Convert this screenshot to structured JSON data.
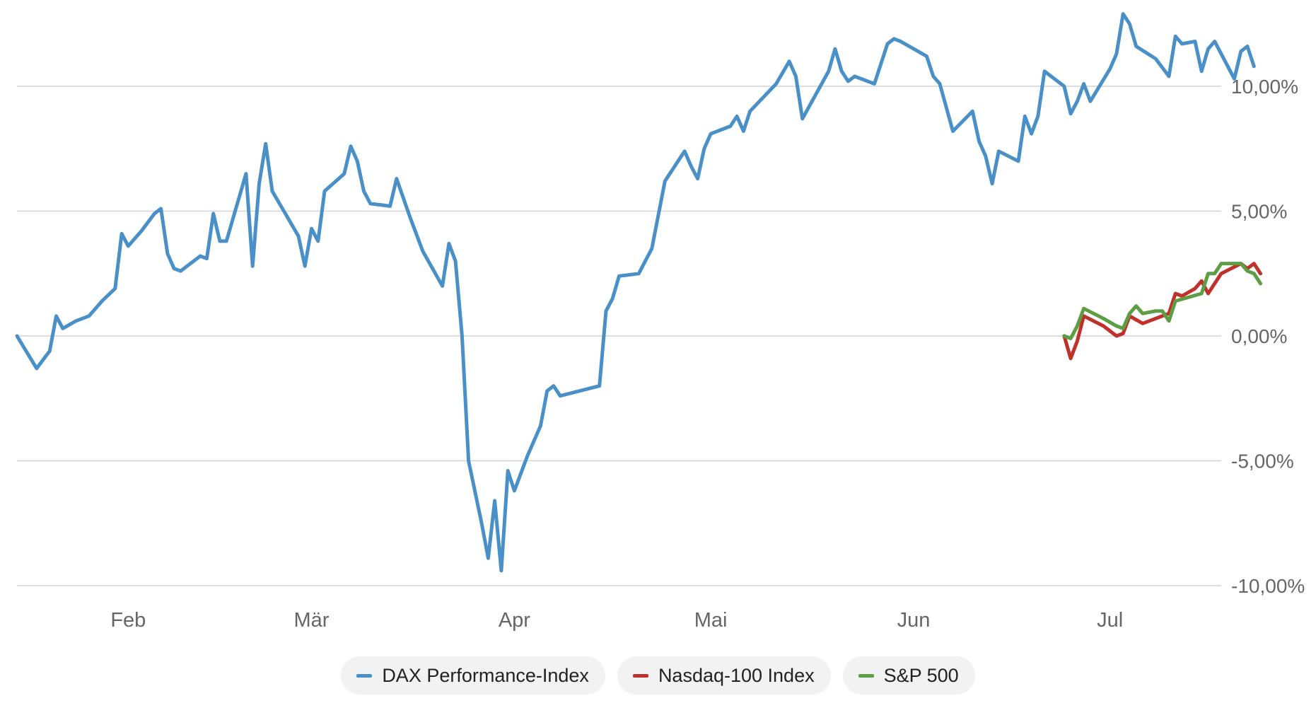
{
  "colors": {
    "grid": "#d4d4d4",
    "tick_text": "#666666",
    "legend_bg": "#f2f2f2"
  },
  "chart_data": {
    "type": "line",
    "title": "",
    "xlabel": "",
    "ylabel": "",
    "ylim": [
      -10,
      10
    ],
    "y_ticks": [
      {
        "value": 10,
        "label": "10,00%"
      },
      {
        "value": 5,
        "label": "5,00%"
      },
      {
        "value": 0,
        "label": "0,00%"
      },
      {
        "value": -5,
        "label": "-5,00%"
      },
      {
        "value": -10,
        "label": "-10,00%"
      }
    ],
    "x_domain": [
      "2025-01-15",
      "2025-07-18"
    ],
    "x_ticks": [
      {
        "date": "2025-02-01",
        "label": "Feb"
      },
      {
        "date": "2025-03-01",
        "label": "Mär"
      },
      {
        "date": "2025-04-01",
        "label": "Apr"
      },
      {
        "date": "2025-05-01",
        "label": "Mai"
      },
      {
        "date": "2025-06-01",
        "label": "Jun"
      },
      {
        "date": "2025-07-01",
        "label": "Jul"
      }
    ],
    "grid": true,
    "legend_position": "bottom",
    "series": [
      {
        "name": "DAX Performance-Index",
        "color": "#4a90c8",
        "points": [
          [
            "2025-01-15",
            0.0
          ],
          [
            "2025-01-18",
            -1.3
          ],
          [
            "2025-01-20",
            -0.6
          ],
          [
            "2025-01-21",
            0.8
          ],
          [
            "2025-01-22",
            0.3
          ],
          [
            "2025-01-24",
            0.6
          ],
          [
            "2025-01-26",
            0.8
          ],
          [
            "2025-01-28",
            1.4
          ],
          [
            "2025-01-30",
            1.9
          ],
          [
            "2025-01-31",
            4.1
          ],
          [
            "2025-02-01",
            3.6
          ],
          [
            "2025-02-03",
            4.2
          ],
          [
            "2025-02-05",
            4.9
          ],
          [
            "2025-02-06",
            5.1
          ],
          [
            "2025-02-07",
            3.3
          ],
          [
            "2025-02-08",
            2.7
          ],
          [
            "2025-02-09",
            2.6
          ],
          [
            "2025-02-12",
            3.2
          ],
          [
            "2025-02-13",
            3.1
          ],
          [
            "2025-02-14",
            4.9
          ],
          [
            "2025-02-15",
            3.8
          ],
          [
            "2025-02-16",
            3.8
          ],
          [
            "2025-02-19",
            6.5
          ],
          [
            "2025-02-20",
            2.8
          ],
          [
            "2025-02-21",
            6.1
          ],
          [
            "2025-02-22",
            7.7
          ],
          [
            "2025-02-23",
            5.8
          ],
          [
            "2025-02-25",
            4.9
          ],
          [
            "2025-02-27",
            4.0
          ],
          [
            "2025-02-28",
            2.8
          ],
          [
            "2025-03-01",
            4.3
          ],
          [
            "2025-03-02",
            3.8
          ],
          [
            "2025-03-03",
            5.8
          ],
          [
            "2025-03-06",
            6.5
          ],
          [
            "2025-03-07",
            7.6
          ],
          [
            "2025-03-08",
            7.0
          ],
          [
            "2025-03-09",
            5.8
          ],
          [
            "2025-03-10",
            5.3
          ],
          [
            "2025-03-13",
            5.2
          ],
          [
            "2025-03-14",
            6.3
          ],
          [
            "2025-03-16",
            4.8
          ],
          [
            "2025-03-18",
            3.4
          ],
          [
            "2025-03-21",
            2.0
          ],
          [
            "2025-03-22",
            3.7
          ],
          [
            "2025-03-23",
            3.0
          ],
          [
            "2025-03-24",
            0.0
          ],
          [
            "2025-03-25",
            -5.0
          ],
          [
            "2025-03-27",
            -7.5
          ],
          [
            "2025-03-28",
            -8.9
          ],
          [
            "2025-03-29",
            -6.6
          ],
          [
            "2025-03-30",
            -9.4
          ],
          [
            "2025-03-31",
            -5.4
          ],
          [
            "2025-04-01",
            -6.2
          ],
          [
            "2025-04-03",
            -4.8
          ],
          [
            "2025-04-05",
            -3.6
          ],
          [
            "2025-04-06",
            -2.2
          ],
          [
            "2025-04-07",
            -2.0
          ],
          [
            "2025-04-08",
            -2.4
          ],
          [
            "2025-04-14",
            -2.0
          ],
          [
            "2025-04-15",
            1.0
          ],
          [
            "2025-04-16",
            1.5
          ],
          [
            "2025-04-17",
            2.4
          ],
          [
            "2025-04-20",
            2.5
          ],
          [
            "2025-04-21",
            3.0
          ],
          [
            "2025-04-22",
            3.5
          ],
          [
            "2025-04-24",
            6.2
          ],
          [
            "2025-04-27",
            7.4
          ],
          [
            "2025-04-28",
            6.8
          ],
          [
            "2025-04-29",
            6.3
          ],
          [
            "2025-04-30",
            7.5
          ],
          [
            "2025-05-01",
            8.1
          ],
          [
            "2025-05-04",
            8.4
          ],
          [
            "2025-05-05",
            8.8
          ],
          [
            "2025-05-06",
            8.2
          ],
          [
            "2025-05-07",
            9.0
          ],
          [
            "2025-05-11",
            10.1
          ],
          [
            "2025-05-13",
            11.0
          ],
          [
            "2025-05-14",
            10.4
          ],
          [
            "2025-05-15",
            8.7
          ],
          [
            "2025-05-19",
            10.6
          ],
          [
            "2025-05-20",
            11.5
          ],
          [
            "2025-05-21",
            10.6
          ],
          [
            "2025-05-22",
            10.2
          ],
          [
            "2025-05-23",
            10.4
          ],
          [
            "2025-05-26",
            10.1
          ],
          [
            "2025-05-28",
            11.7
          ],
          [
            "2025-05-29",
            11.9
          ],
          [
            "2025-05-30",
            11.8
          ],
          [
            "2025-06-03",
            11.2
          ],
          [
            "2025-06-04",
            10.4
          ],
          [
            "2025-06-05",
            10.1
          ],
          [
            "2025-06-07",
            8.2
          ],
          [
            "2025-06-10",
            9.0
          ],
          [
            "2025-06-11",
            7.8
          ],
          [
            "2025-06-12",
            7.2
          ],
          [
            "2025-06-13",
            6.1
          ],
          [
            "2025-06-14",
            7.4
          ],
          [
            "2025-06-17",
            7.0
          ],
          [
            "2025-06-18",
            8.8
          ],
          [
            "2025-06-19",
            8.1
          ],
          [
            "2025-06-20",
            8.8
          ],
          [
            "2025-06-21",
            10.6
          ],
          [
            "2025-06-24",
            10.0
          ],
          [
            "2025-06-25",
            8.9
          ],
          [
            "2025-06-26",
            9.4
          ],
          [
            "2025-06-27",
            10.1
          ],
          [
            "2025-06-28",
            9.4
          ],
          [
            "2025-07-01",
            10.7
          ],
          [
            "2025-07-02",
            11.3
          ],
          [
            "2025-07-03",
            12.9
          ],
          [
            "2025-07-04",
            12.5
          ],
          [
            "2025-07-05",
            11.6
          ],
          [
            "2025-07-08",
            11.1
          ],
          [
            "2025-07-10",
            10.4
          ],
          [
            "2025-07-11",
            12.0
          ],
          [
            "2025-07-12",
            11.7
          ],
          [
            "2025-07-14",
            11.8
          ],
          [
            "2025-07-15",
            10.6
          ],
          [
            "2025-07-16",
            11.5
          ],
          [
            "2025-07-17",
            11.8
          ],
          [
            "2025-07-20",
            10.3
          ],
          [
            "2025-07-21",
            11.4
          ],
          [
            "2025-07-22",
            11.6
          ],
          [
            "2025-07-23",
            10.8
          ]
        ]
      },
      {
        "name": "Nasdaq-100 Index",
        "color": "#c0312b",
        "points": [
          [
            "2025-06-24",
            0.0
          ],
          [
            "2025-06-25",
            -0.9
          ],
          [
            "2025-06-26",
            -0.2
          ],
          [
            "2025-06-27",
            0.8
          ],
          [
            "2025-06-30",
            0.4
          ],
          [
            "2025-07-02",
            0.0
          ],
          [
            "2025-07-03",
            0.1
          ],
          [
            "2025-07-04",
            0.8
          ],
          [
            "2025-07-06",
            0.5
          ],
          [
            "2025-07-08",
            0.7
          ],
          [
            "2025-07-10",
            0.9
          ],
          [
            "2025-07-11",
            1.7
          ],
          [
            "2025-07-12",
            1.6
          ],
          [
            "2025-07-14",
            1.9
          ],
          [
            "2025-07-15",
            2.2
          ],
          [
            "2025-07-16",
            1.7
          ],
          [
            "2025-07-17",
            2.1
          ],
          [
            "2025-07-18",
            2.5
          ],
          [
            "2025-07-21",
            2.9
          ],
          [
            "2025-07-22",
            2.7
          ],
          [
            "2025-07-23",
            2.9
          ],
          [
            "2025-07-24",
            2.5
          ]
        ]
      },
      {
        "name": "S&P 500",
        "color": "#5d9d43",
        "points": [
          [
            "2025-06-24",
            0.0
          ],
          [
            "2025-06-25",
            -0.1
          ],
          [
            "2025-06-26",
            0.4
          ],
          [
            "2025-06-27",
            1.1
          ],
          [
            "2025-06-30",
            0.7
          ],
          [
            "2025-07-02",
            0.4
          ],
          [
            "2025-07-03",
            0.3
          ],
          [
            "2025-07-04",
            0.9
          ],
          [
            "2025-07-05",
            1.2
          ],
          [
            "2025-07-06",
            0.9
          ],
          [
            "2025-07-08",
            1.0
          ],
          [
            "2025-07-09",
            1.0
          ],
          [
            "2025-07-10",
            0.6
          ],
          [
            "2025-07-11",
            1.4
          ],
          [
            "2025-07-15",
            1.7
          ],
          [
            "2025-07-16",
            2.5
          ],
          [
            "2025-07-17",
            2.5
          ],
          [
            "2025-07-18",
            2.9
          ],
          [
            "2025-07-21",
            2.9
          ],
          [
            "2025-07-22",
            2.6
          ],
          [
            "2025-07-23",
            2.5
          ],
          [
            "2025-07-24",
            2.1
          ]
        ]
      }
    ]
  }
}
